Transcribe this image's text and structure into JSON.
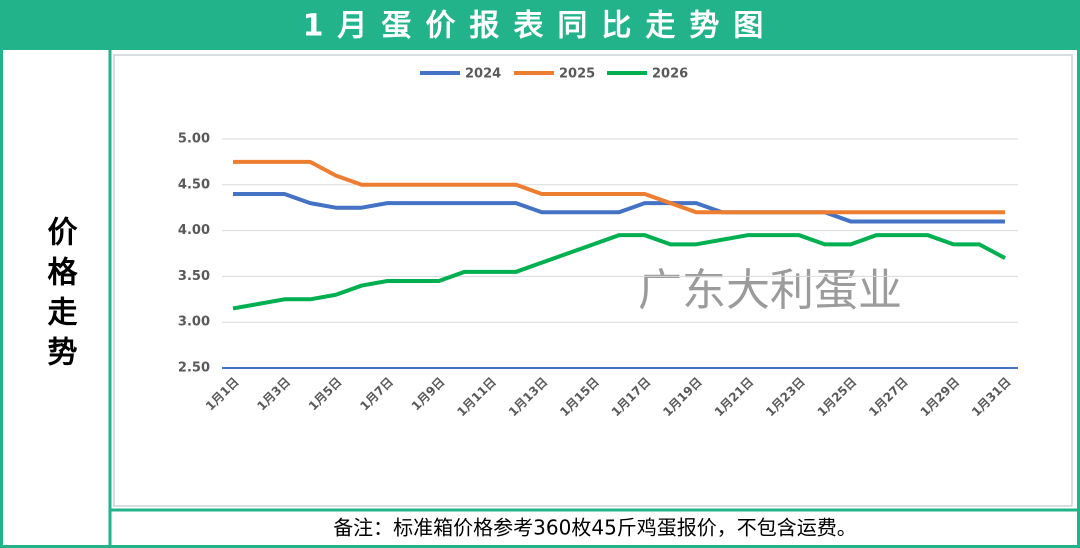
{
  "chart_data": {
    "type": "line",
    "title": "1月蛋价报表同比走势图",
    "y_label": "价格走势",
    "note": "备注：标准箱价格参考360枚45斤鸡蛋报价，不包含运费。",
    "watermark": "广东大利蛋业",
    "categories": [
      "1月1日",
      null,
      "1月3日",
      null,
      "1月5日",
      null,
      "1月7日",
      null,
      "1月9日",
      null,
      "1月11日",
      null,
      "1月13日",
      null,
      "1月15日",
      null,
      "1月17日",
      null,
      "1月19日",
      null,
      "1月21日",
      null,
      "1月23日",
      null,
      "1月25日",
      null,
      "1月27日",
      null,
      "1月29日",
      null,
      "1月31日"
    ],
    "series": [
      {
        "name": "2024",
        "color": "#4472c4",
        "values": [
          4.4,
          4.4,
          4.4,
          4.3,
          4.25,
          4.25,
          4.3,
          4.3,
          4.3,
          4.3,
          4.3,
          4.3,
          4.2,
          4.2,
          4.2,
          4.2,
          4.3,
          4.3,
          4.3,
          4.2,
          4.2,
          4.2,
          4.2,
          4.2,
          4.1,
          4.1,
          4.1,
          4.1,
          4.1,
          4.1,
          4.1
        ]
      },
      {
        "name": "2025",
        "color": "#ed7d31",
        "values": [
          4.75,
          4.75,
          4.75,
          4.75,
          4.6,
          4.5,
          4.5,
          4.5,
          4.5,
          4.5,
          4.5,
          4.5,
          4.4,
          4.4,
          4.4,
          4.4,
          4.4,
          4.3,
          4.2,
          4.2,
          4.2,
          4.2,
          4.2,
          4.2,
          4.2,
          4.2,
          4.2,
          4.2,
          4.2,
          4.2,
          4.2
        ]
      },
      {
        "name": "2026",
        "color": "#00b050",
        "values": [
          3.15,
          3.2,
          3.25,
          3.25,
          3.3,
          3.4,
          3.45,
          3.45,
          3.45,
          3.55,
          3.55,
          3.55,
          3.65,
          3.75,
          3.85,
          3.95,
          3.95,
          3.85,
          3.85,
          3.9,
          3.95,
          3.95,
          3.95,
          3.85,
          3.85,
          3.95,
          3.95,
          3.95,
          3.85,
          3.85,
          3.7
        ]
      }
    ],
    "ylim": [
      2.5,
      5.0
    ],
    "yticks": [
      {
        "value": 2.5,
        "label": "2.50"
      },
      {
        "value": 3.0,
        "label": "3.00"
      },
      {
        "value": 3.5,
        "label": "3.50"
      },
      {
        "value": 4.0,
        "label": "4.00"
      },
      {
        "value": 4.5,
        "label": "4.50"
      },
      {
        "value": 5.0,
        "label": "5.00"
      }
    ],
    "grid": true,
    "legend": "top"
  }
}
